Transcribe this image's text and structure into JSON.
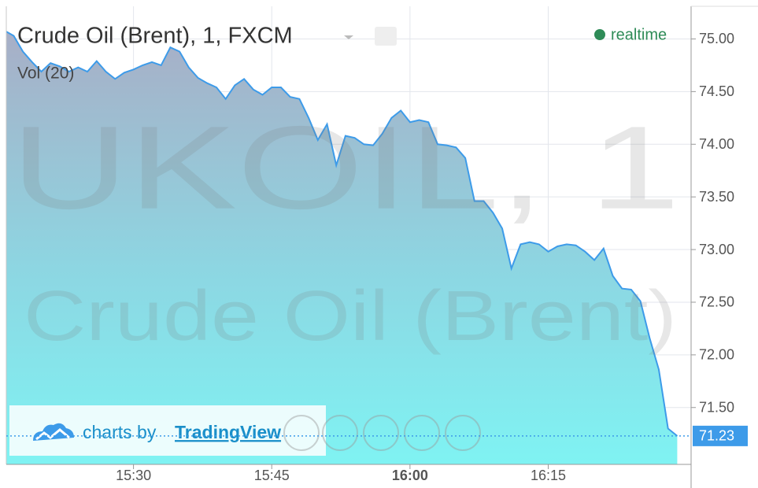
{
  "chart_data": {
    "type": "area",
    "title": "Crude Oil (Brent), 1, FXCM",
    "subtitle": "Vol (20)",
    "status": "realtime",
    "watermark": [
      "UKOIL, 1",
      "Crude Oil (Brent)"
    ],
    "branding": {
      "prefix": "charts by",
      "name": "TradingView"
    },
    "color": "#3d9be9",
    "grid": true,
    "x": [
      916,
      917,
      918,
      919,
      920,
      921,
      922,
      923,
      924,
      925,
      926,
      927,
      928,
      929,
      930,
      931,
      932,
      933,
      934,
      935,
      936,
      937,
      938,
      939,
      940,
      941,
      942,
      943,
      944,
      945,
      946,
      947,
      948,
      949,
      950,
      951,
      952,
      953,
      954,
      955,
      956,
      957,
      958,
      959,
      960,
      961,
      962,
      963,
      964,
      965,
      966,
      967,
      968,
      969,
      970,
      971,
      972,
      973,
      974,
      975,
      976,
      977,
      978,
      979,
      980,
      981,
      982,
      983,
      984,
      985,
      986,
      987,
      988,
      989
    ],
    "values": [
      75.08,
      75.03,
      74.88,
      74.78,
      74.69,
      74.77,
      74.74,
      74.69,
      74.73,
      74.69,
      74.79,
      74.69,
      74.62,
      74.68,
      74.71,
      74.75,
      74.78,
      74.75,
      74.92,
      74.88,
      74.73,
      74.63,
      74.58,
      74.54,
      74.43,
      74.56,
      74.62,
      74.52,
      74.47,
      74.54,
      74.54,
      74.45,
      74.43,
      74.25,
      74.04,
      74.19,
      73.8,
      74.08,
      74.06,
      74.0,
      73.99,
      74.1,
      74.25,
      74.32,
      74.21,
      74.23,
      74.21,
      74.0,
      73.99,
      73.97,
      73.87,
      73.46,
      73.46,
      73.35,
      73.2,
      72.82,
      73.05,
      73.07,
      73.05,
      72.98,
      73.03,
      73.05,
      73.04,
      72.98,
      72.9,
      73.01,
      72.75,
      72.63,
      72.62,
      72.51,
      72.16,
      71.86,
      71.3,
      71.23
    ],
    "xlim": [
      916.2,
      990.5
    ],
    "ylim": [
      70.96,
      75.31
    ],
    "xticks": [
      {
        "value": 930,
        "label": "15:30"
      },
      {
        "value": 945,
        "label": "15:45"
      },
      {
        "value": 960,
        "label": "16:00"
      },
      {
        "value": 975,
        "label": "16:15"
      }
    ],
    "yticks": [
      {
        "value": 71.5,
        "label": "71.50"
      },
      {
        "value": 72,
        "label": "72.00"
      },
      {
        "value": 72.5,
        "label": "72.50"
      },
      {
        "value": 73,
        "label": "73.00"
      },
      {
        "value": 73.5,
        "label": "73.50"
      },
      {
        "value": 74,
        "label": "74.00"
      },
      {
        "value": 74.5,
        "label": "74.50"
      },
      {
        "value": 75,
        "label": "75.00"
      }
    ]
  }
}
